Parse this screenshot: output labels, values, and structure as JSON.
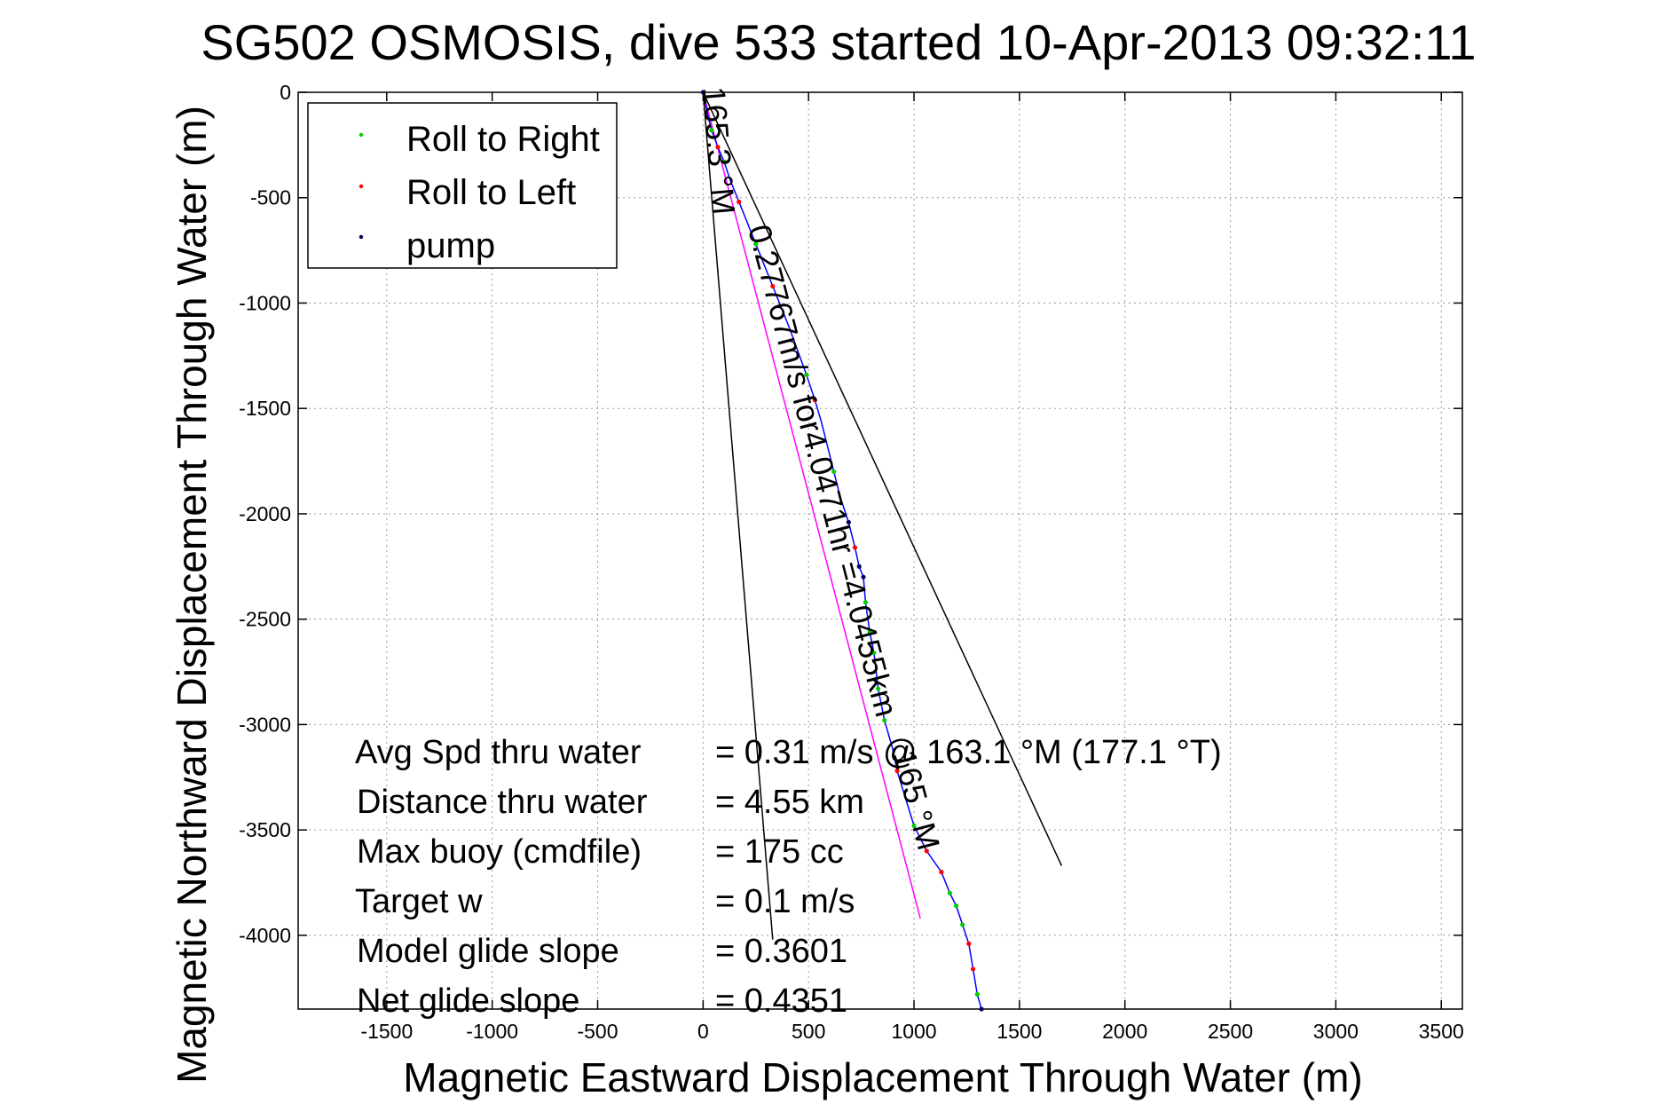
{
  "chart_data": {
    "type": "scatter",
    "title": "SG502 OSMOSIS, dive 533 started 10-Apr-2013 09:32:11",
    "xlabel": "Magnetic Eastward Displacement Through Water (m)",
    "ylabel": "Magnetic Northward Displacement Through Water (m)",
    "xlim": [
      -1920,
      3600
    ],
    "ylim": [
      -4350,
      0
    ],
    "xticks": [
      -1500,
      -1000,
      -500,
      0,
      500,
      1000,
      1500,
      2000,
      2500,
      3000,
      3500
    ],
    "yticks": [
      0,
      -500,
      -1000,
      -1500,
      -2000,
      -2500,
      -3000,
      -3500,
      -4000
    ],
    "grid": true,
    "legend": {
      "position": "top-left",
      "entries": [
        {
          "label": "Roll to Right",
          "color": "#00cc00"
        },
        {
          "label": "Roll to Left",
          "color": "#ff0000"
        },
        {
          "label": "pump",
          "color": "#000066"
        }
      ]
    },
    "track": {
      "color": "#0000ff",
      "points": [
        [
          0,
          0
        ],
        [
          20,
          -100
        ],
        [
          40,
          -180
        ],
        [
          70,
          -260
        ],
        [
          100,
          -330
        ],
        [
          130,
          -420
        ],
        [
          170,
          -520
        ],
        [
          210,
          -620
        ],
        [
          250,
          -720
        ],
        [
          290,
          -820
        ],
        [
          330,
          -920
        ],
        [
          370,
          -1020
        ],
        [
          410,
          -1120
        ],
        [
          450,
          -1230
        ],
        [
          490,
          -1340
        ],
        [
          530,
          -1460
        ],
        [
          560,
          -1560
        ],
        [
          590,
          -1680
        ],
        [
          620,
          -1800
        ],
        [
          650,
          -1920
        ],
        [
          690,
          -2040
        ],
        [
          720,
          -2160
        ],
        [
          740,
          -2250
        ],
        [
          760,
          -2300
        ],
        [
          770,
          -2420
        ],
        [
          790,
          -2560
        ],
        [
          810,
          -2660
        ],
        [
          830,
          -2830
        ],
        [
          860,
          -2980
        ],
        [
          900,
          -3120
        ],
        [
          920,
          -3220
        ],
        [
          960,
          -3350
        ],
        [
          1000,
          -3480
        ],
        [
          1060,
          -3600
        ],
        [
          1130,
          -3700
        ],
        [
          1170,
          -3800
        ],
        [
          1200,
          -3860
        ],
        [
          1230,
          -3950
        ],
        [
          1260,
          -4040
        ],
        [
          1280,
          -4160
        ],
        [
          1300,
          -4280
        ],
        [
          1320,
          -4350
        ]
      ]
    },
    "roll_right_points": [
      [
        40,
        -180
      ],
      [
        100,
        -330
      ],
      [
        250,
        -720
      ],
      [
        490,
        -1340
      ],
      [
        620,
        -1800
      ],
      [
        770,
        -2420
      ],
      [
        790,
        -2560
      ],
      [
        810,
        -2660
      ],
      [
        830,
        -2830
      ],
      [
        860,
        -2980
      ],
      [
        1000,
        -3480
      ],
      [
        1170,
        -3800
      ],
      [
        1200,
        -3860
      ],
      [
        1230,
        -3950
      ],
      [
        1300,
        -4280
      ]
    ],
    "roll_left_points": [
      [
        70,
        -260
      ],
      [
        170,
        -520
      ],
      [
        330,
        -920
      ],
      [
        530,
        -1460
      ],
      [
        720,
        -2160
      ],
      [
        920,
        -3220
      ],
      [
        1060,
        -3600
      ],
      [
        1130,
        -3700
      ],
      [
        1260,
        -4040
      ],
      [
        1280,
        -4160
      ]
    ],
    "pump_points": [
      [
        0,
        0
      ],
      [
        690,
        -2040
      ],
      [
        740,
        -2250
      ],
      [
        760,
        -2300
      ],
      [
        1320,
        -4350
      ]
    ],
    "direct_line": {
      "color": "#ff00ff",
      "from": [
        0,
        0
      ],
      "to": [
        1030,
        -3920
      ]
    },
    "heading_lines": [
      {
        "from": [
          0,
          0
        ],
        "to": [
          330,
          -4020
        ],
        "label": "165.3 °M"
      },
      {
        "from": [
          0,
          0
        ],
        "to": [
          1700,
          -3670
        ],
        "label": "165 °M"
      }
    ],
    "track_annotation": "0.27767m/s for4.0471hr =4.0455km",
    "stats": [
      {
        "label": "Avg Spd thru water",
        "value": "=  0.31 m/s @ 163.1 °M (177.1 °T)"
      },
      {
        "label": "Distance thru water",
        "value": "=  4.55 km"
      },
      {
        "label": "Max buoy (cmdfile)",
        "value": "= 175 cc"
      },
      {
        "label": "Target w",
        "value": "= 0.1 m/s"
      },
      {
        "label": "Model glide slope",
        "value": "= 0.3601"
      },
      {
        "label": "Net glide slope",
        "value": "= 0.4351"
      }
    ]
  }
}
